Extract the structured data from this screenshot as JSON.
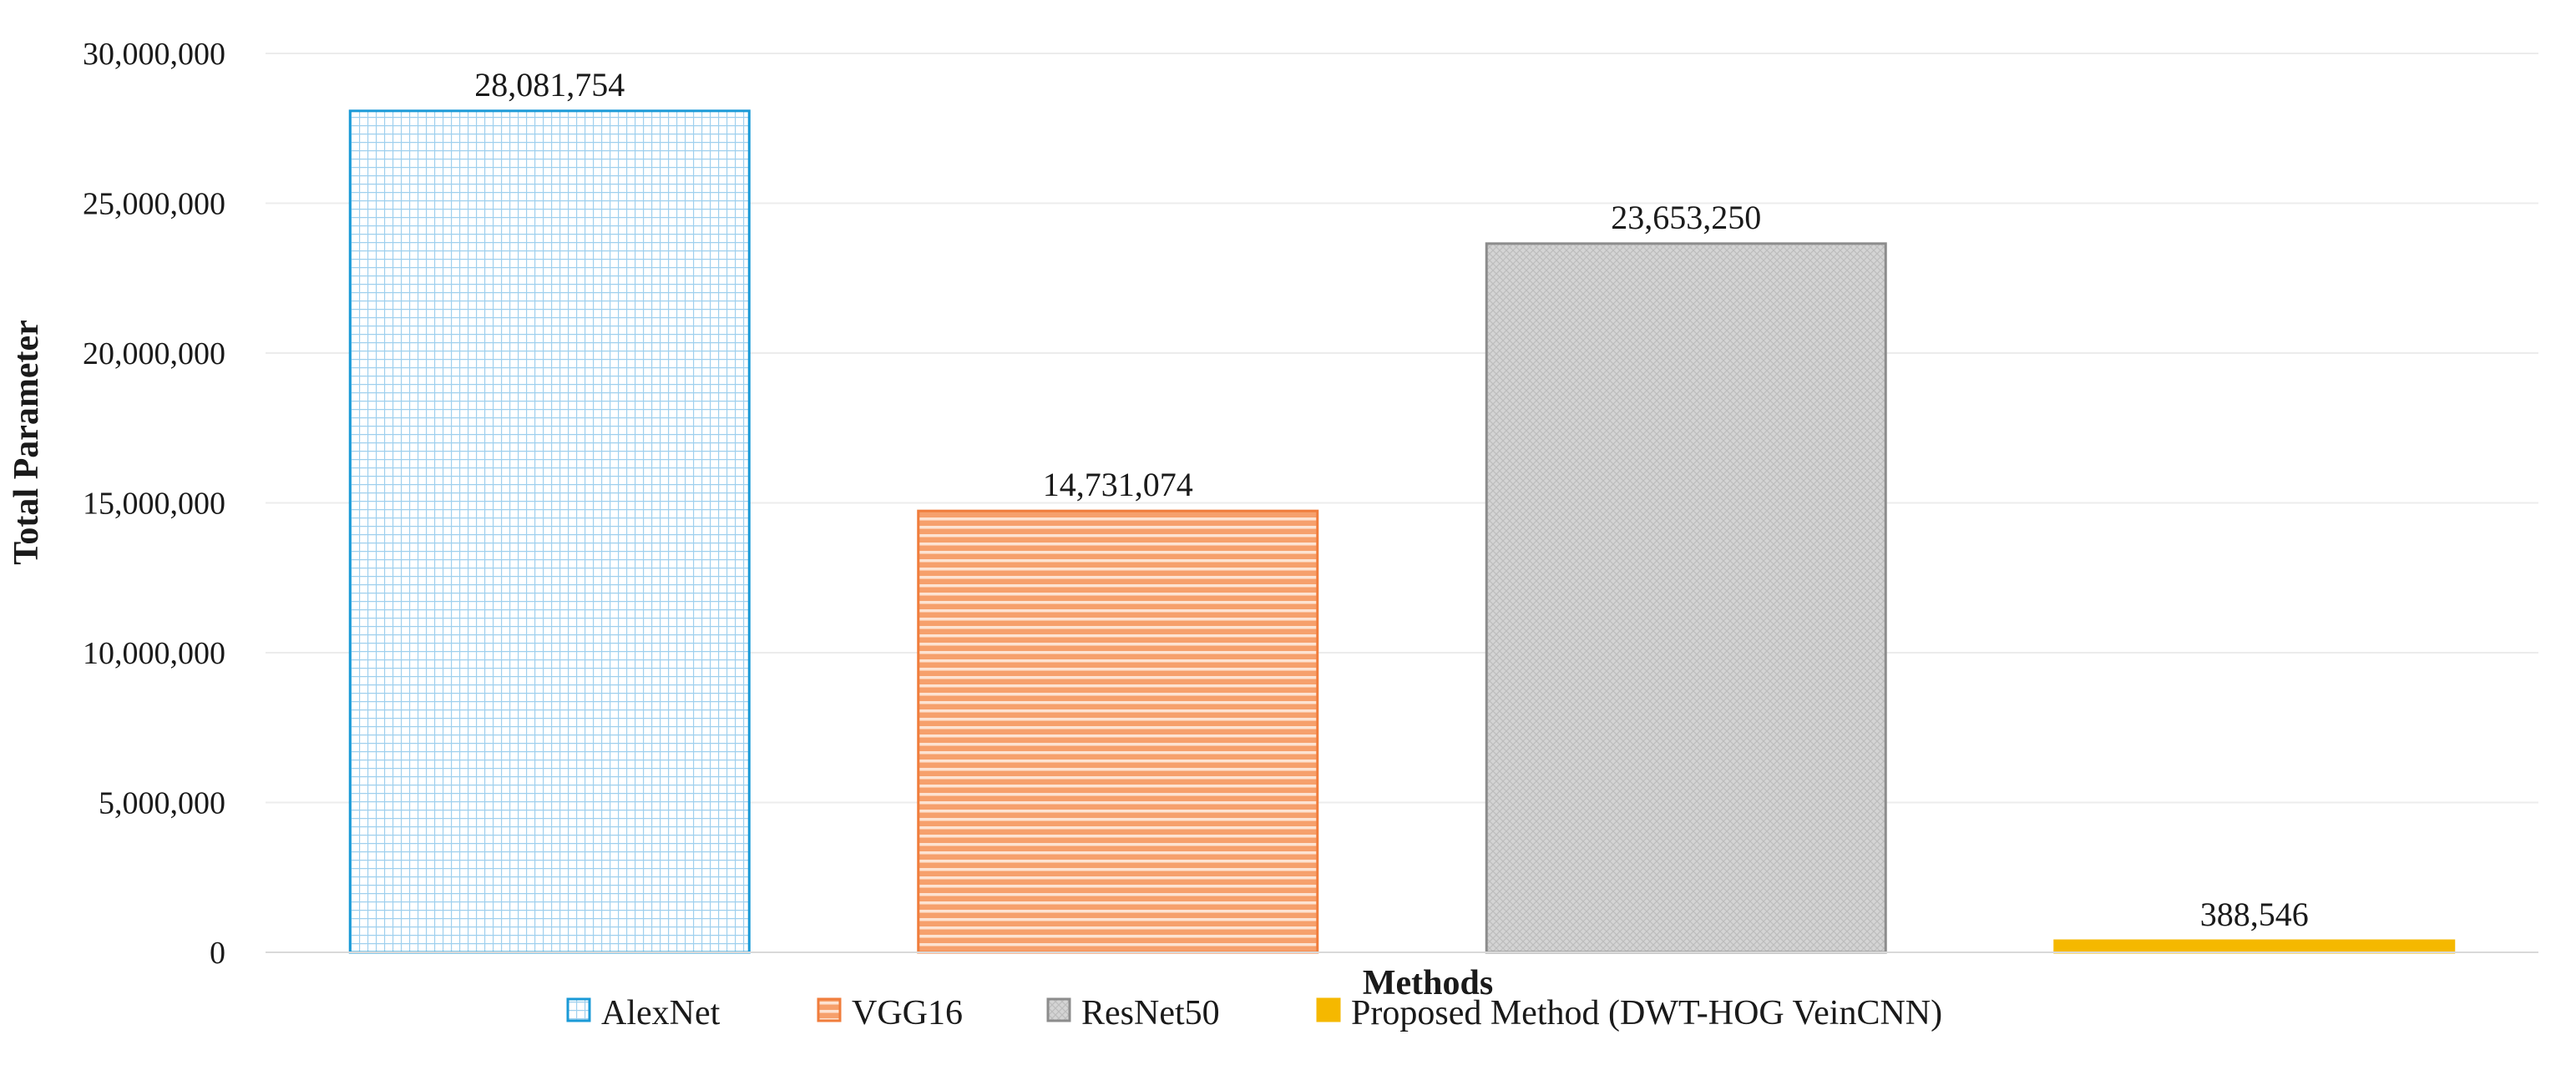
{
  "chart_data": {
    "type": "bar",
    "title": "",
    "xlabel": "Methods",
    "ylabel": "Total Parameter",
    "ylim": [
      0,
      30000000
    ],
    "yticks": [
      0,
      5000000,
      10000000,
      15000000,
      20000000,
      25000000,
      30000000
    ],
    "ytick_labels": [
      "0",
      "5,000,000",
      "10,000,000",
      "15,000,000",
      "20,000,000",
      "25,000,000",
      "30,000,000"
    ],
    "grid": true,
    "legend_position": "bottom",
    "categories": [
      "AlexNet",
      "VGG16",
      "ResNet50",
      "Proposed Method (DWT-HOG VeinCNN)"
    ],
    "values": [
      28081754,
      14731074,
      23653250,
      388546
    ],
    "data_labels": [
      "28,081,754",
      "14,731,074",
      "23,653,250",
      "388,546"
    ],
    "legend": [
      "AlexNet",
      "VGG16",
      "ResNet50",
      "Proposed Method (DWT-HOG VeinCNN)"
    ],
    "colors": {
      "AlexNet": "#1a9ad7",
      "VGG16": "#f07d3c",
      "ResNet50": "#8c8c8c",
      "Proposed Method (DWT-HOG VeinCNN)": "#f5b800"
    }
  }
}
